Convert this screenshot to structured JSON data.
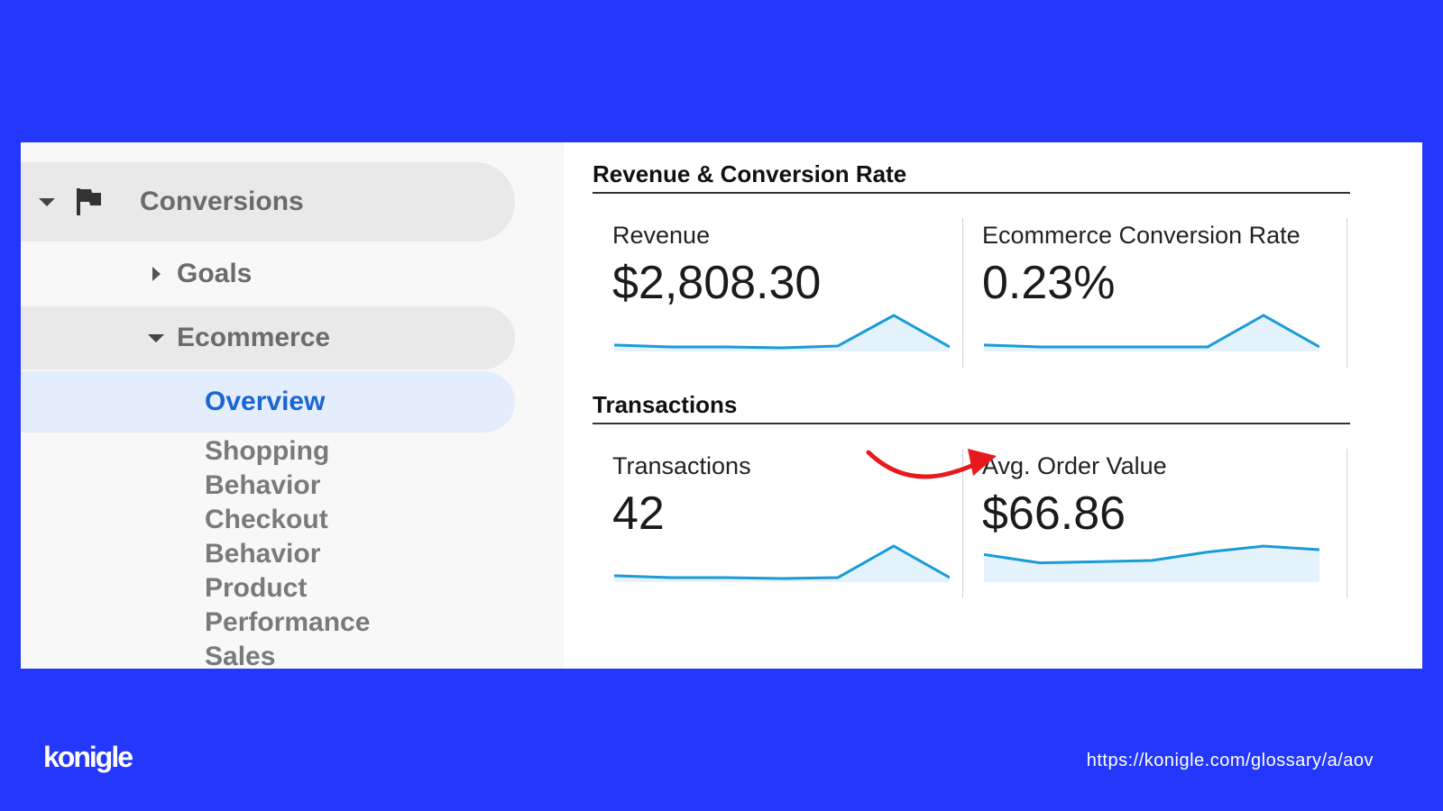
{
  "sidebar": {
    "conversions_label": "Conversions",
    "goals_label": "Goals",
    "ecommerce_label": "Ecommerce",
    "overview_label": "Overview",
    "sub_items": [
      "Shopping",
      "Behavior",
      "Checkout",
      "Behavior",
      "Product",
      "Performance",
      "Sales"
    ]
  },
  "sections": {
    "revenue_title": "Revenue & Conversion Rate",
    "transactions_title": "Transactions"
  },
  "metrics": {
    "revenue": {
      "label": "Revenue",
      "value": "$2,808.30"
    },
    "conversion_rate": {
      "label": "Ecommerce Conversion Rate",
      "value": "0.23%"
    },
    "transactions": {
      "label": "Transactions",
      "value": "42"
    },
    "aov": {
      "label": "Avg. Order Value",
      "value": "$66.86"
    }
  },
  "sparklines": {
    "revenue": [
      3,
      1,
      1,
      0,
      2,
      35,
      1
    ],
    "conversion_rate": [
      3,
      1,
      1,
      1,
      1,
      35,
      1
    ],
    "transactions": [
      3,
      1,
      1,
      0,
      1,
      35,
      1
    ],
    "aov": [
      20,
      13,
      14,
      15,
      22,
      27,
      24
    ]
  },
  "colors": {
    "background": "#2438FB",
    "sparkline": "#1a9bd7",
    "sparkline_fill": "#e3f2fb",
    "arrow": "#e8191c",
    "active_nav": "#1a66d1"
  },
  "icons": {
    "conversions": "flag-icon",
    "expand": "caret-down-icon",
    "collapse": "caret-right-icon",
    "annotation": "curved-arrow-icon"
  },
  "footer": {
    "logo": "konigle",
    "url": "https://konigle.com/glossary/a/aov"
  }
}
